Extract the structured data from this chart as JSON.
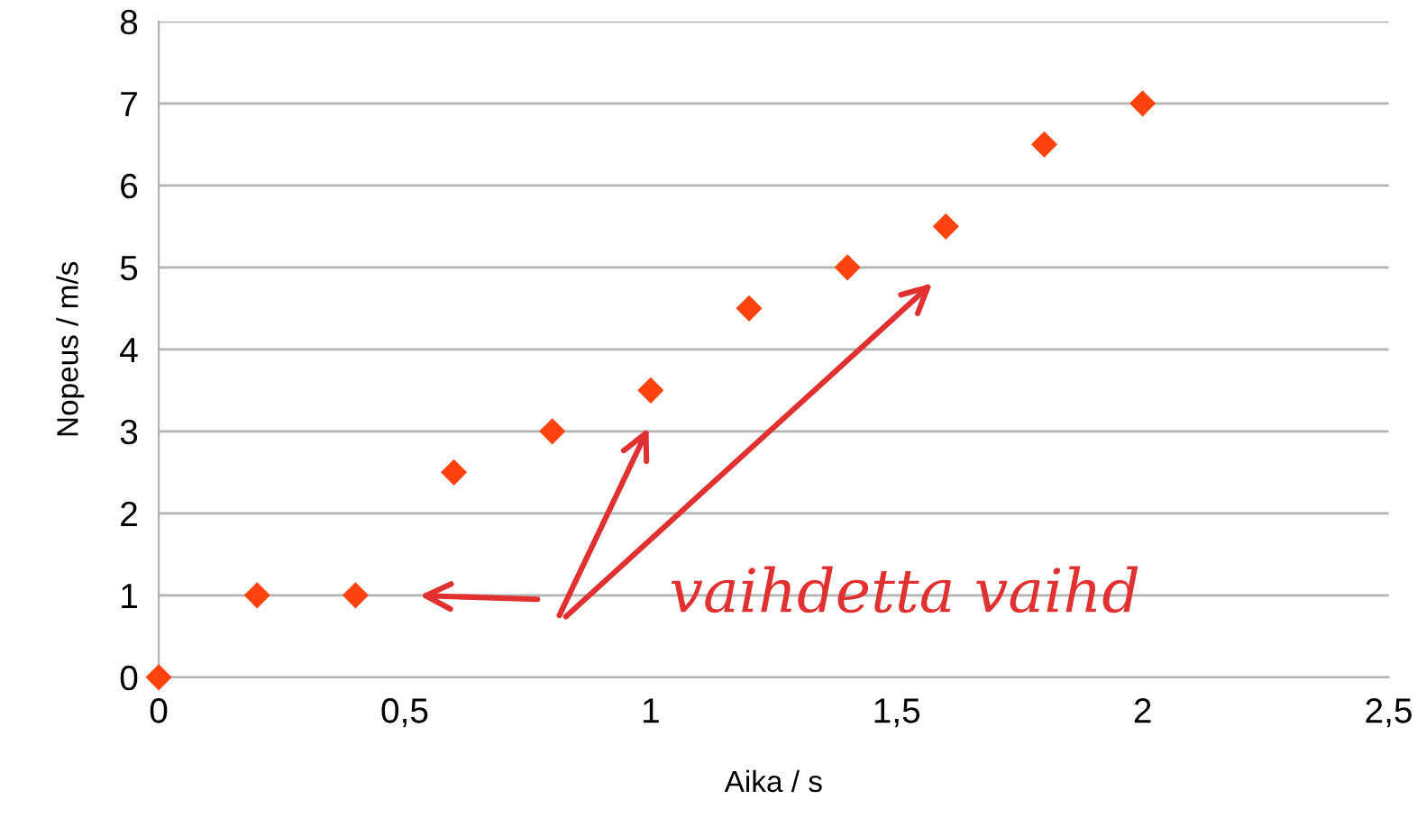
{
  "chart_data": {
    "type": "scatter",
    "xlabel": "Aika / s",
    "ylabel": "Nopeus / m/s",
    "x": [
      0,
      0.2,
      0.4,
      0.6,
      0.8,
      1.0,
      1.2,
      1.4,
      1.6,
      1.8,
      2.0
    ],
    "series": [
      {
        "color": "#ff420e",
        "values": [
          0,
          1,
          1,
          2.5,
          3,
          3.5,
          4.5,
          5,
          5.5,
          6.5,
          7
        ]
      }
    ],
    "marker": "diamond",
    "xlim": [
      0,
      2.5
    ],
    "xticks": [
      0,
      {
        "value": 0.5,
        "label": "0,5"
      },
      1,
      {
        "value": 1.5,
        "label": "1,5"
      },
      2,
      {
        "value": 2.5,
        "label": "2,5"
      }
    ],
    "ylim": [
      0,
      8
    ],
    "yticks": [
      0,
      1,
      2,
      3,
      4,
      5,
      6,
      7,
      8
    ],
    "grid": "y",
    "legend": false,
    "annotations": [
      "vaihdetta vaihd"
    ]
  }
}
